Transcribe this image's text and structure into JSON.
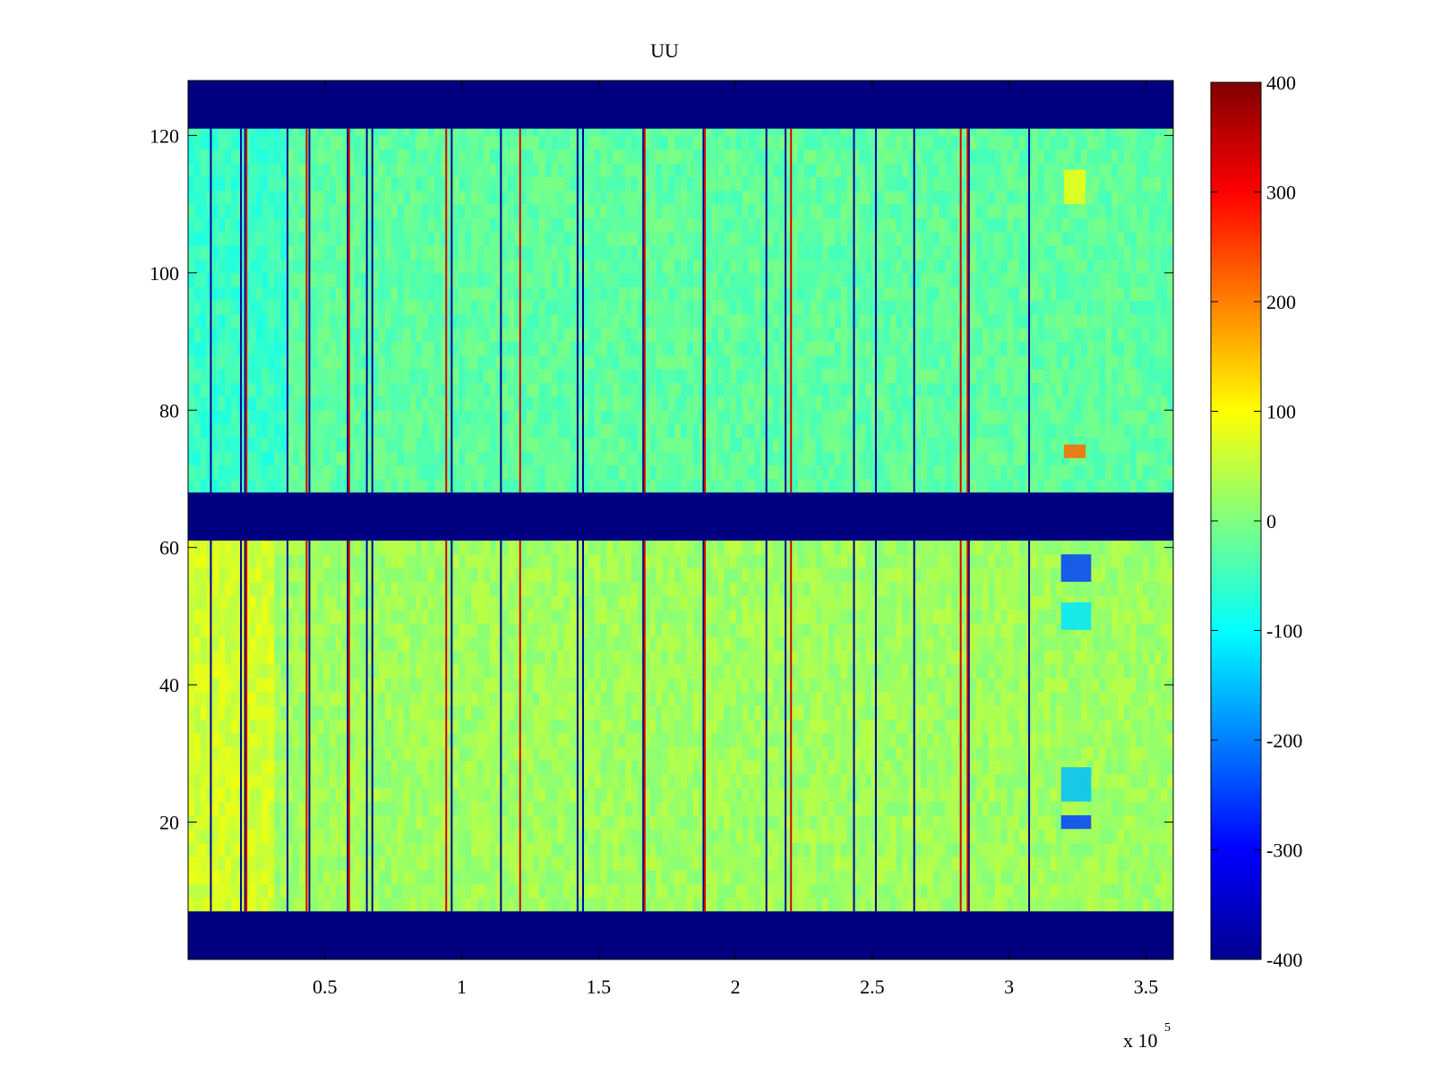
{
  "chart_data": {
    "type": "heatmap",
    "title": "UU",
    "xlabel": "",
    "ylabel": "",
    "x_multiplier_label": "x 10",
    "x_multiplier_exponent": "5",
    "xlim": [
      0,
      360000
    ],
    "ylim": [
      0,
      128
    ],
    "x_ticks": [
      {
        "value": 50000,
        "label": "0.5"
      },
      {
        "value": 100000,
        "label": "1"
      },
      {
        "value": 150000,
        "label": "1.5"
      },
      {
        "value": 200000,
        "label": "2"
      },
      {
        "value": 250000,
        "label": "2.5"
      },
      {
        "value": 300000,
        "label": "3"
      },
      {
        "value": 350000,
        "label": "3.5"
      }
    ],
    "y_ticks": [
      {
        "value": 20,
        "label": "20"
      },
      {
        "value": 40,
        "label": "40"
      },
      {
        "value": 60,
        "label": "60"
      },
      {
        "value": 80,
        "label": "80"
      },
      {
        "value": 100,
        "label": "100"
      },
      {
        "value": 120,
        "label": "120"
      }
    ],
    "colorbar": {
      "colormap": "jet",
      "clim": [
        -400,
        400
      ],
      "ticks": [
        {
          "value": 400,
          "label": "400"
        },
        {
          "value": 300,
          "label": "300"
        },
        {
          "value": 200,
          "label": "200"
        },
        {
          "value": 100,
          "label": "100"
        },
        {
          "value": 0,
          "label": "0"
        },
        {
          "value": -100,
          "label": "-100"
        },
        {
          "value": -200,
          "label": "-200"
        },
        {
          "value": -300,
          "label": "-300"
        },
        {
          "value": -400,
          "label": "-400"
        }
      ]
    },
    "masked_row_bands": [
      {
        "y_from": 0,
        "y_to": 7,
        "value": -400
      },
      {
        "y_from": 61,
        "y_to": 68,
        "value": -400
      },
      {
        "y_from": 121,
        "y_to": 128,
        "value": -400
      }
    ],
    "data_row_bands": [
      {
        "y_from": 7,
        "y_to": 61,
        "typical_value_range": [
          -50,
          100
        ]
      },
      {
        "y_from": 68,
        "y_to": 121,
        "typical_value_range": [
          -100,
          50
        ]
      }
    ],
    "low_value_columns_x": [
      8000,
      19000,
      20500,
      36000,
      44000,
      58000,
      65000,
      67000,
      96000,
      114000,
      142000,
      144000,
      166000,
      188000,
      211000,
      218000,
      243000,
      251000,
      265000,
      285000,
      307000
    ],
    "high_value_columns_x": [
      21000,
      43000,
      58500,
      94000,
      121000,
      166500,
      188500,
      220000,
      282000,
      284500
    ],
    "localized_patches": [
      {
        "x_from": 319000,
        "x_to": 330000,
        "y_from": 55,
        "y_to": 59,
        "value": -250
      },
      {
        "x_from": 319000,
        "x_to": 330000,
        "y_from": 19,
        "y_to": 21,
        "value": -250
      },
      {
        "x_from": 319000,
        "x_to": 330000,
        "y_from": 23,
        "y_to": 28,
        "value": -150
      },
      {
        "x_from": 319000,
        "x_to": 330000,
        "y_from": 48,
        "y_to": 52,
        "value": -120
      },
      {
        "x_from": 320000,
        "x_to": 328000,
        "y_from": 73,
        "y_to": 75,
        "value": 220
      },
      {
        "x_from": 320000,
        "x_to": 328000,
        "y_from": 110,
        "y_to": 115,
        "value": 90
      }
    ],
    "grid": false,
    "legend": "none"
  }
}
